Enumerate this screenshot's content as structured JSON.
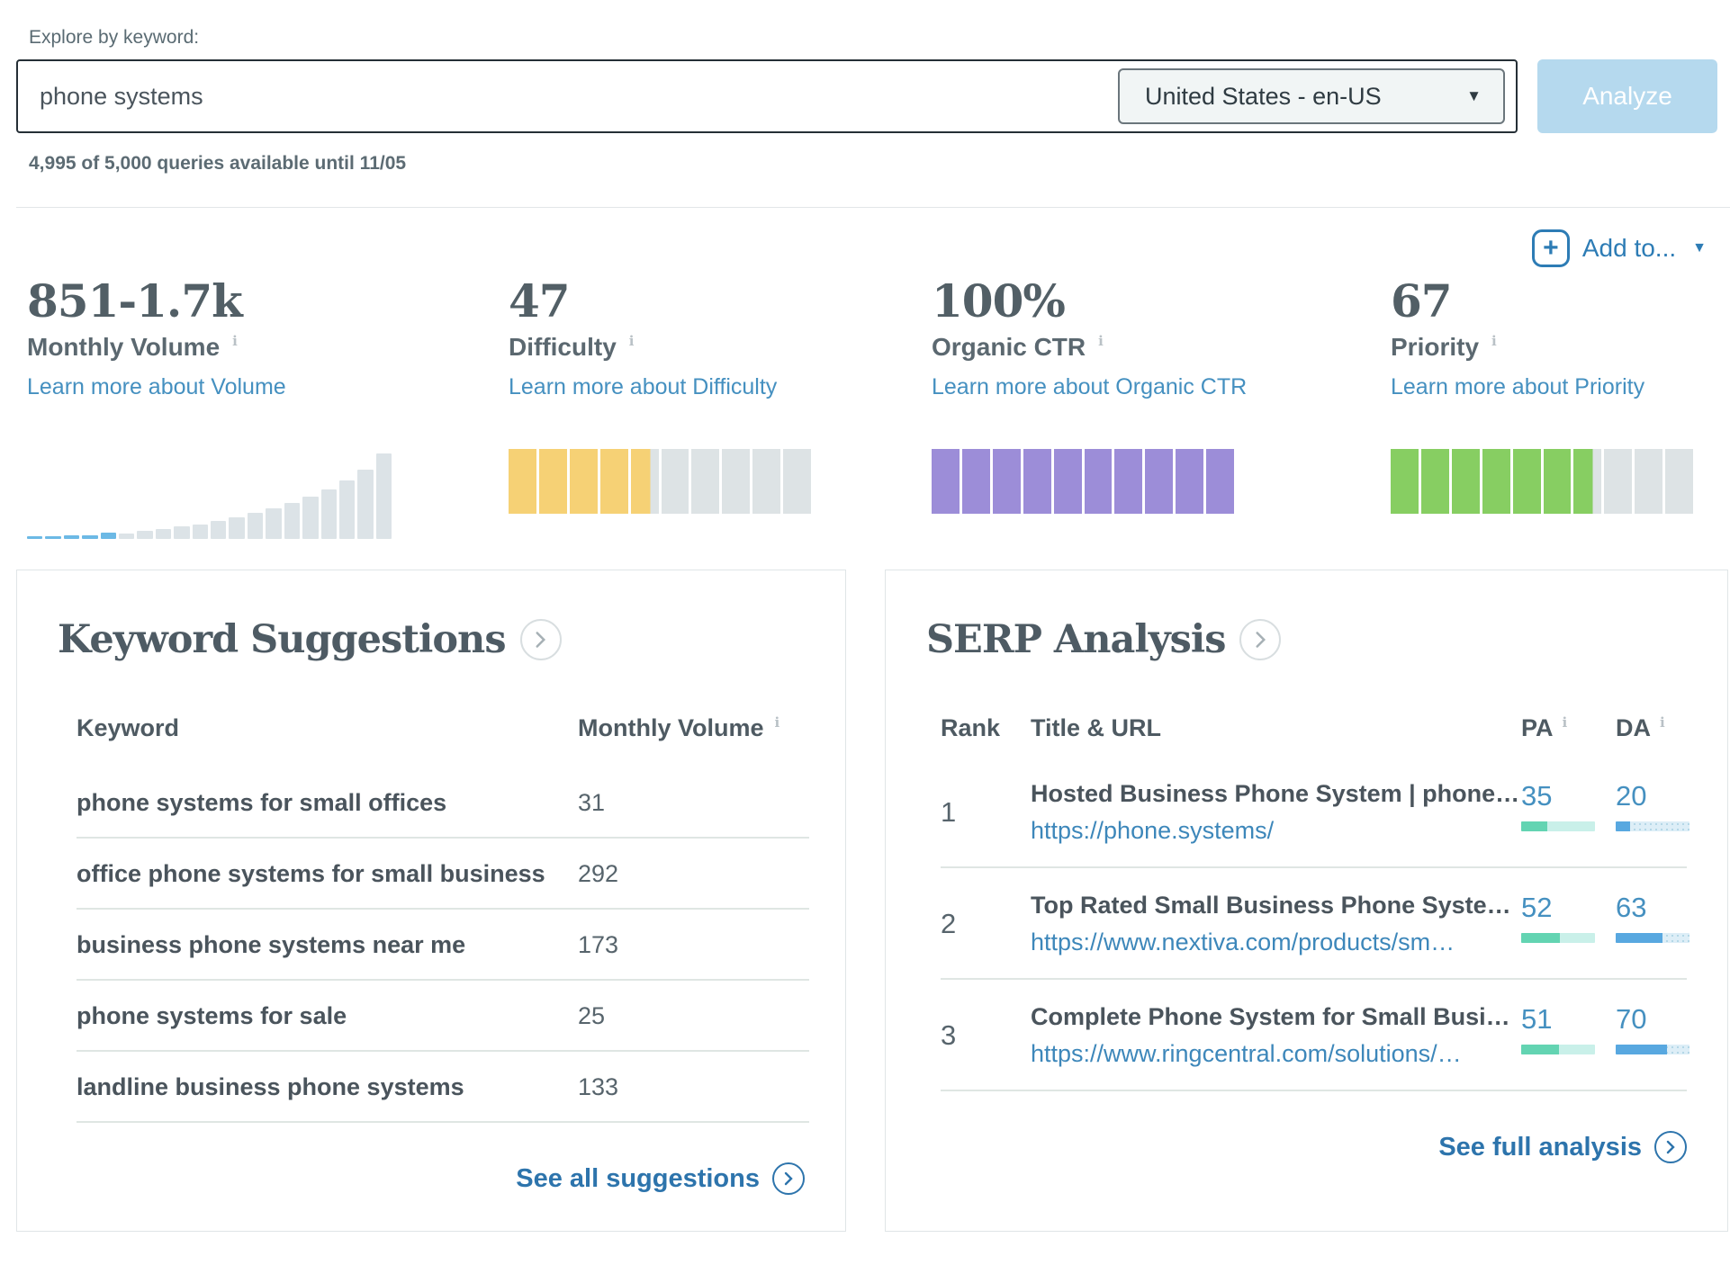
{
  "icons": {
    "plus": "+",
    "caret_down": "▼",
    "info": "i"
  },
  "search": {
    "label": "Explore by keyword:",
    "keyword": "phone systems",
    "locale": "United States - en-US",
    "analyze_label": "Analyze",
    "quota_note": "4,995 of 5,000 queries available until 11/05"
  },
  "add_to_label": "Add to...",
  "metrics": {
    "volume": {
      "value": "851-1.7k",
      "label": "Monthly Volume",
      "link": "Learn more about Volume"
    },
    "difficulty": {
      "value": "47",
      "label": "Difficulty",
      "link": "Learn more about Difficulty"
    },
    "ctr": {
      "value": "100%",
      "label": "Organic CTR",
      "link": "Learn more about Organic CTR"
    },
    "priority": {
      "value": "67",
      "label": "Priority",
      "link": "Learn more about Priority"
    }
  },
  "chart_data": [
    {
      "type": "bar",
      "title": "Monthly Volume trend sparkline",
      "units": "relative height %, unlabeled axis",
      "values": [
        3,
        3,
        4,
        4,
        7,
        6,
        9,
        11,
        14,
        16,
        20,
        24,
        29,
        34,
        40,
        47,
        55,
        65,
        77,
        95
      ],
      "highlight_count": 5,
      "highlight_color": "#6cb9e5",
      "bar_color": "#dce3e7",
      "ylim": [
        0,
        100
      ]
    },
    {
      "type": "bar",
      "subtype": "segmented-meter",
      "title": "Difficulty",
      "value": 47,
      "max": 100,
      "segments": 10,
      "fill_color": "#f6d175",
      "track_color": "#dde3e5"
    },
    {
      "type": "bar",
      "subtype": "segmented-meter",
      "title": "Organic CTR",
      "value": 100,
      "max": 100,
      "segments": 10,
      "fill_color": "#9c8dd8",
      "track_color": "#dde3e5"
    },
    {
      "type": "bar",
      "subtype": "segmented-meter",
      "title": "Priority",
      "value": 67,
      "max": 100,
      "segments": 10,
      "fill_color": "#87ce62",
      "track_color": "#dde3e5"
    }
  ],
  "keyword_suggestions": {
    "title": "Keyword Suggestions",
    "columns": [
      "Keyword",
      "Monthly Volume"
    ],
    "rows": [
      {
        "keyword": "phone systems for small offices",
        "volume": "31"
      },
      {
        "keyword": "office phone systems for small business",
        "volume": "292"
      },
      {
        "keyword": "business phone systems near me",
        "volume": "173"
      },
      {
        "keyword": "phone systems for sale",
        "volume": "25"
      },
      {
        "keyword": "landline business phone systems",
        "volume": "133"
      }
    ],
    "footer_link": "See all suggestions"
  },
  "serp_analysis": {
    "title": "SERP Analysis",
    "columns": [
      "Rank",
      "Title & URL",
      "PA",
      "DA"
    ],
    "pa_color": "#63d4b2",
    "da_color": "#58a8e0",
    "rows": [
      {
        "rank": "1",
        "title": "Hosted Business Phone System | phone…",
        "url": "https://phone.systems/",
        "pa": 35,
        "da": 20
      },
      {
        "rank": "2",
        "title": "Top Rated Small Business Phone Syste…",
        "url": "https://www.nextiva.com/products/sm…",
        "pa": 52,
        "da": 63
      },
      {
        "rank": "3",
        "title": "Complete Phone System for Small Busi…",
        "url": "https://www.ringcentral.com/solutions/…",
        "pa": 51,
        "da": 70
      }
    ],
    "footer_link": "See full analysis"
  }
}
